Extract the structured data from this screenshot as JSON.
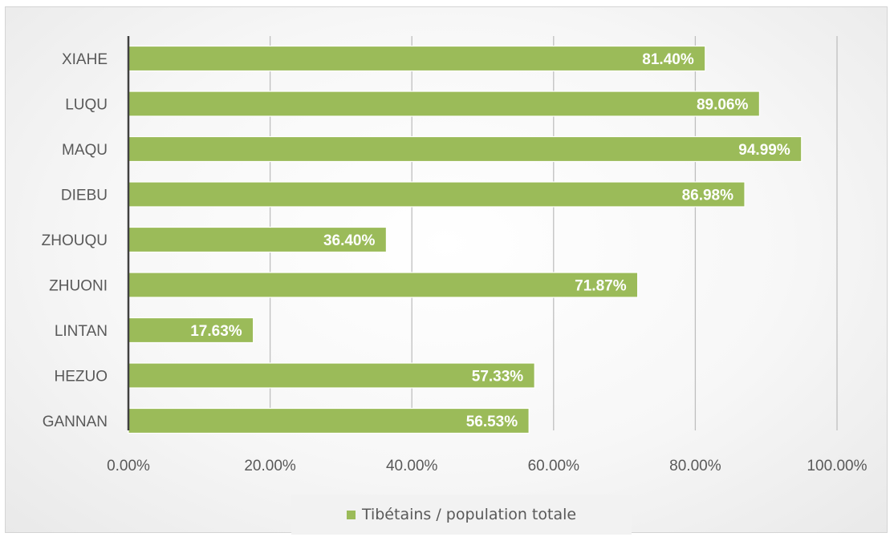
{
  "chart_data": {
    "type": "bar",
    "orientation": "horizontal",
    "categories": [
      "XIAHE",
      "LUQU",
      "MAQU",
      "DIEBU",
      "ZHOUQU",
      "ZHUONI",
      "LINTAN",
      "HEZUO",
      "GANNAN"
    ],
    "series": [
      {
        "name": "Tibétains / population totale",
        "values": [
          81.4,
          89.06,
          94.99,
          86.98,
          36.4,
          71.87,
          17.63,
          57.33,
          56.53
        ],
        "labels": [
          "81.40%",
          "89.06%",
          "94.99%",
          "86.98%",
          "36.40%",
          "71.87%",
          "17.63%",
          "57.33%",
          "56.53%"
        ],
        "color": "#9bbb59"
      }
    ],
    "xlim": [
      0,
      100
    ],
    "xticks": [
      0,
      20,
      40,
      60,
      80,
      100
    ],
    "xtick_labels": [
      "0.00%",
      "20.00%",
      "40.00%",
      "60.00%",
      "80.00%",
      "100.00%"
    ],
    "grid": true,
    "legend": "bottom",
    "title": "",
    "xlabel": "",
    "ylabel": ""
  },
  "colors": {
    "bar": "#9bbb59",
    "gridline": "#bfbfbf",
    "axis": "#404040",
    "text": "#595959"
  }
}
